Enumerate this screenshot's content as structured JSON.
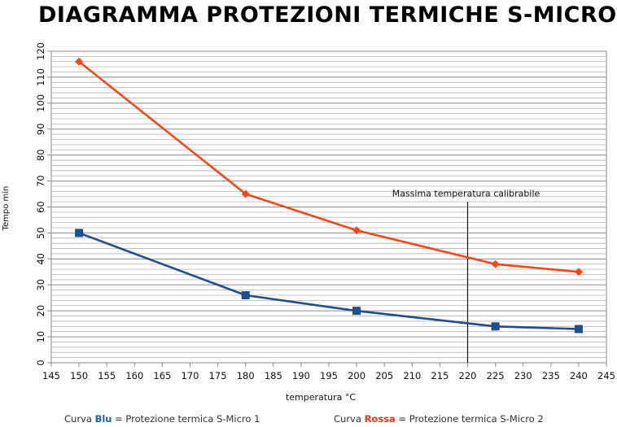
{
  "chart_data": {
    "type": "line",
    "title": "DIAGRAMMA PROTEZIONI TERMICHE S-MICRO",
    "xlabel": "temperatura °C",
    "ylabel": "Tempo min",
    "xlim": [
      145,
      245
    ],
    "ylim": [
      0,
      120
    ],
    "xticks": [
      145,
      150,
      155,
      160,
      165,
      170,
      175,
      180,
      185,
      190,
      195,
      200,
      205,
      210,
      215,
      220,
      225,
      230,
      235,
      240,
      245
    ],
    "yticks": [
      0,
      10,
      20,
      30,
      40,
      50,
      60,
      70,
      80,
      90,
      100,
      110,
      120
    ],
    "grid": true,
    "series": [
      {
        "key": "blue",
        "color": "#1f4e8c",
        "marker": "square",
        "x": [
          150,
          180,
          200,
          225,
          240
        ],
        "y": [
          50,
          26,
          20,
          14,
          13
        ]
      },
      {
        "key": "red",
        "color": "#f04a1c",
        "marker": "diamond",
        "x": [
          150,
          180,
          200,
          225,
          240
        ],
        "y": [
          116,
          65,
          51,
          38,
          35
        ]
      }
    ],
    "annotations": [
      {
        "type": "vline",
        "x": 220,
        "label": "Massima temperatura calibrabile"
      }
    ]
  },
  "legend": {
    "blue": {
      "prefix": "Curva ",
      "keyword": "Blu",
      "suffix": " = Protezione termica S-Micro 1"
    },
    "red": {
      "prefix": "Curva ",
      "keyword": "Rossa",
      "suffix": " = Protezione termica S-Micro 2"
    }
  }
}
